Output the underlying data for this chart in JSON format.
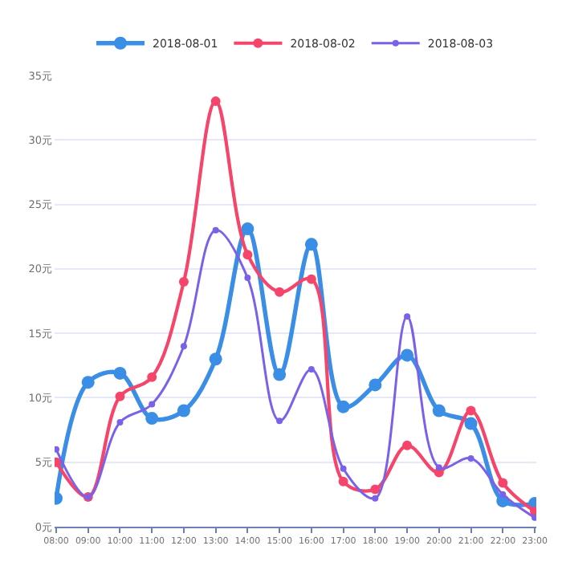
{
  "chart_data": {
    "type": "line",
    "categories": [
      "08:00",
      "09:00",
      "10:00",
      "11:00",
      "12:00",
      "13:00",
      "14:00",
      "15:00",
      "16:00",
      "17:00",
      "18:00",
      "19:00",
      "20:00",
      "21:00",
      "22:00",
      "23:00"
    ],
    "series": [
      {
        "name": "2018-08-01",
        "color": "#3a8ee6",
        "values": [
          2.2,
          11.2,
          11.9,
          8.4,
          9.0,
          13.0,
          23.1,
          11.8,
          21.9,
          9.3,
          11.0,
          13.3,
          9.0,
          8.0,
          2.0,
          1.8
        ]
      },
      {
        "name": "2018-08-02",
        "color": "#f5456a",
        "values": [
          5.0,
          2.3,
          10.1,
          11.6,
          19.0,
          33.0,
          21.1,
          18.2,
          19.2,
          3.5,
          2.9,
          6.3,
          4.2,
          9.0,
          3.4,
          1.2
        ]
      },
      {
        "name": "2018-08-03",
        "color": "#7b61e8",
        "values": [
          6.0,
          2.3,
          8.1,
          9.5,
          14.0,
          23.0,
          19.3,
          8.2,
          12.2,
          4.5,
          2.2,
          16.3,
          4.6,
          5.3,
          2.5,
          0.7
        ]
      }
    ],
    "ylim": [
      0,
      35
    ],
    "yticks": [
      {
        "value": 0,
        "label": "0元"
      },
      {
        "value": 5,
        "label": "5元"
      },
      {
        "value": 10,
        "label": "10元"
      },
      {
        "value": 15,
        "label": "15元"
      },
      {
        "value": 20,
        "label": "20元"
      },
      {
        "value": 25,
        "label": "25元"
      },
      {
        "value": 30,
        "label": "30元"
      },
      {
        "value": 35,
        "label": "35元"
      }
    ],
    "grid": "y",
    "legend": "top",
    "marker": "circle",
    "line_style": "solid"
  }
}
